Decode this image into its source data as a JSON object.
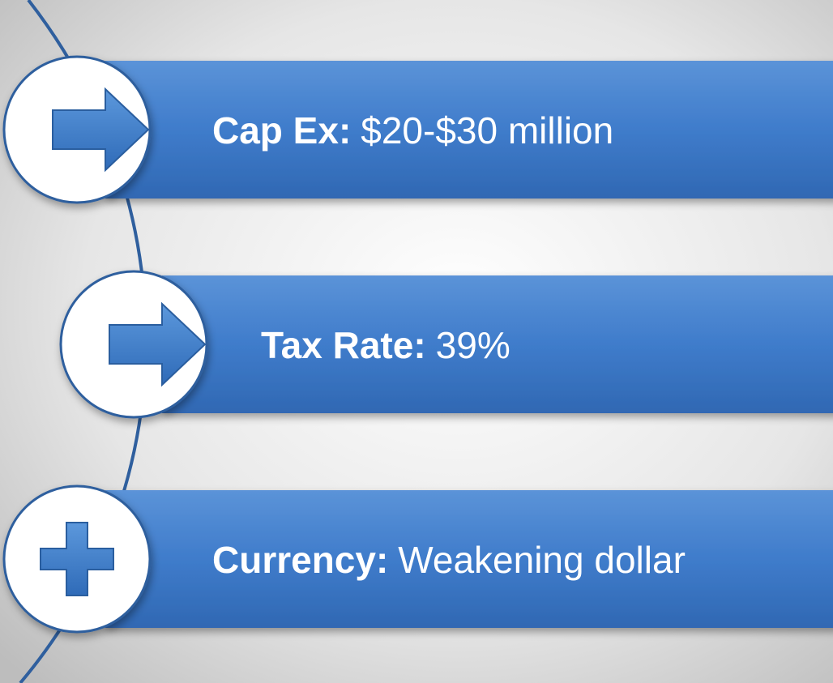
{
  "items": [
    {
      "label": "Cap Ex:",
      "value": "$20-$30 million",
      "icon": "arrow"
    },
    {
      "label": "Tax Rate:",
      "value": "39%",
      "icon": "arrow"
    },
    {
      "label": "Currency:",
      "value": "Weakening dollar",
      "icon": "plus"
    }
  ]
}
